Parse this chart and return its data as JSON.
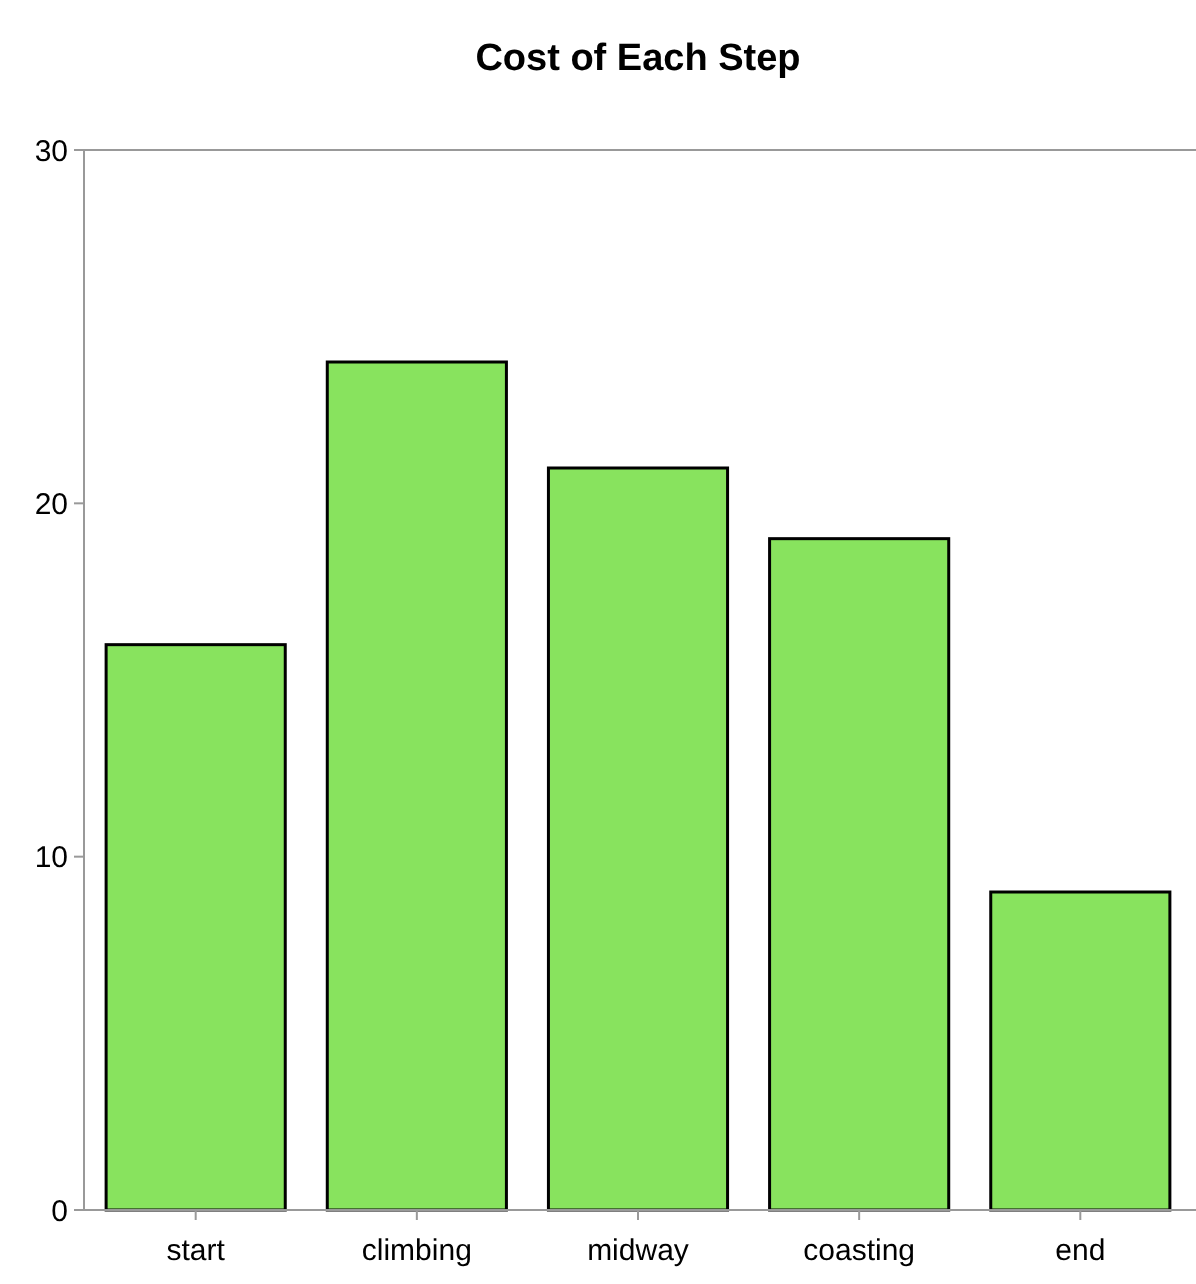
{
  "chart_data": {
    "type": "bar",
    "title": "Cost of Each Step",
    "categories": [
      "start",
      "climbing",
      "midway",
      "coasting",
      "end"
    ],
    "values": [
      16,
      24,
      21,
      19,
      9
    ],
    "color": "#88e35e",
    "ylim": [
      0,
      30
    ],
    "yticks": [
      0,
      10,
      20,
      30
    ],
    "grid": false
  }
}
